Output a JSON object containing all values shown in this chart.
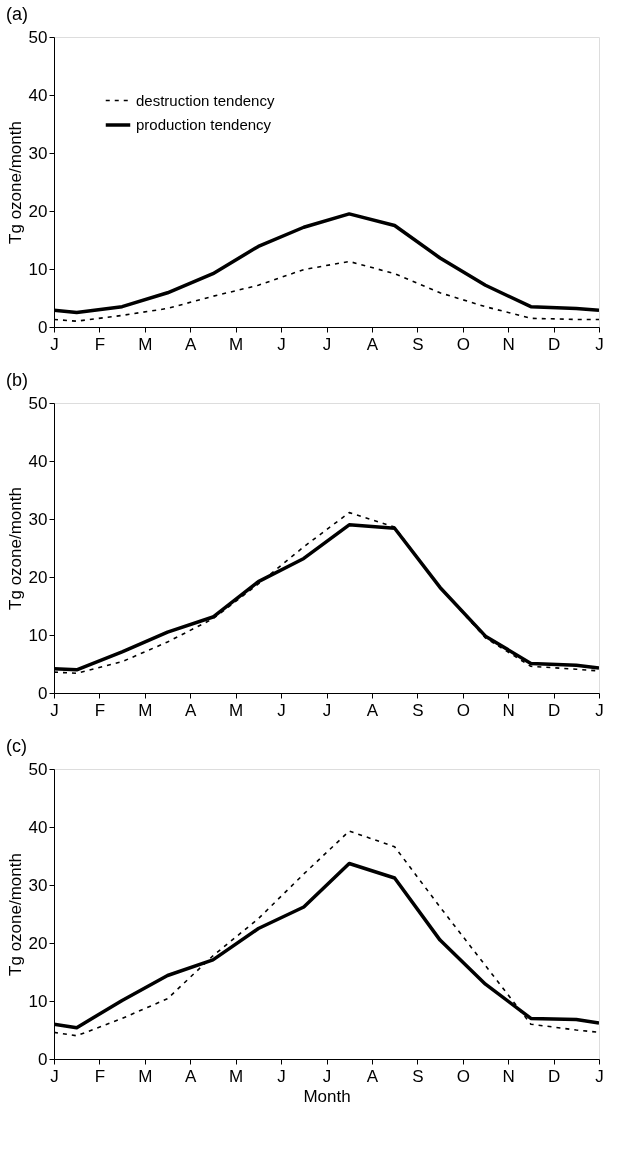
{
  "chart_data": [
    {
      "type": "line",
      "title": "(a)",
      "ylabel": "Tg ozone/month",
      "ylim": [
        0,
        50
      ],
      "yticks": [
        0,
        10,
        20,
        30,
        40,
        50
      ],
      "categories": [
        "J",
        null,
        "F",
        null,
        "M",
        null,
        "A",
        null,
        "M",
        null,
        "J",
        null,
        "J",
        null,
        "A",
        null,
        "S",
        null,
        "O",
        null,
        "N",
        null,
        "D",
        null,
        "J"
      ],
      "series": [
        {
          "name": "destruction tendency",
          "color": "#000000",
          "line_style": "dashed",
          "values": [
            1.3,
            1.0,
            null,
            2.0,
            null,
            3.2,
            null,
            5.3,
            null,
            7.2,
            null,
            9.9,
            null,
            11.3,
            null,
            9.2,
            null,
            5.9,
            null,
            3.5,
            null,
            1.5,
            null,
            1.3,
            1.3
          ]
        },
        {
          "name": "production tendency",
          "color": "#000000",
          "line_style": "solid",
          "values": [
            2.9,
            2.5,
            null,
            3.5,
            null,
            5.9,
            null,
            9.2,
            null,
            13.9,
            null,
            17.2,
            null,
            19.5,
            null,
            17.5,
            null,
            11.9,
            null,
            7.2,
            null,
            3.5,
            null,
            3.2,
            2.9
          ]
        }
      ],
      "legend": "top left",
      "grid": false
    },
    {
      "type": "line",
      "title": "(b)",
      "ylabel": "Tg ozone/month",
      "ylim": [
        0,
        50
      ],
      "yticks": [
        0,
        10,
        20,
        30,
        40,
        50
      ],
      "categories": [
        "J",
        null,
        "F",
        null,
        "M",
        null,
        "A",
        null,
        "M",
        null,
        "J",
        null,
        "J",
        null,
        "A",
        null,
        "S",
        null,
        "O",
        null,
        "N",
        null,
        "D",
        null,
        "J"
      ],
      "series": [
        {
          "name": "destruction tendency",
          "color": "#000000",
          "line_style": "dashed",
          "values": [
            3.6,
            3.4,
            null,
            5.4,
            null,
            8.8,
            null,
            12.8,
            null,
            18.8,
            null,
            25.2,
            null,
            31.1,
            null,
            28.6,
            null,
            18.2,
            null,
            9.5,
            null,
            4.6,
            null,
            4.1,
            3.8
          ]
        },
        {
          "name": "production tendency",
          "color": "#000000",
          "line_style": "solid",
          "values": [
            4.2,
            4.0,
            null,
            7.1,
            null,
            10.5,
            null,
            13.1,
            null,
            19.2,
            null,
            23.2,
            null,
            29.0,
            null,
            28.4,
            null,
            18.2,
            null,
            9.8,
            null,
            5.1,
            null,
            4.8,
            4.3
          ]
        }
      ],
      "legend": "top left",
      "grid": false
    },
    {
      "type": "line",
      "title": "(c)",
      "ylabel": "Tg ozone/month",
      "xlabel": "Month",
      "ylim": [
        0,
        50
      ],
      "yticks": [
        0,
        10,
        20,
        30,
        40,
        50
      ],
      "categories": [
        "J",
        null,
        "F",
        null,
        "M",
        null,
        "A",
        null,
        "M",
        null,
        "J",
        null,
        "J",
        null,
        "A",
        null,
        "S",
        null,
        "O",
        null,
        "N",
        null,
        "D",
        null,
        "J"
      ],
      "series": [
        {
          "name": "destruction tendency",
          "color": "#000000",
          "line_style": "dashed",
          "values": [
            4.6,
            4.0,
            null,
            7.0,
            null,
            10.4,
            null,
            17.8,
            null,
            24.2,
            null,
            31.9,
            null,
            39.3,
            null,
            36.6,
            null,
            26.2,
            null,
            16.1,
            null,
            6.0,
            null,
            5.0,
            4.6
          ]
        },
        {
          "name": "production tendency",
          "color": "#000000",
          "line_style": "solid",
          "values": [
            6.0,
            5.4,
            null,
            10.1,
            null,
            14.4,
            null,
            17.1,
            null,
            22.5,
            null,
            26.2,
            null,
            33.7,
            null,
            31.2,
            null,
            20.5,
            null,
            12.9,
            null,
            7.0,
            null,
            6.8,
            6.2
          ]
        }
      ],
      "legend": "top left",
      "grid": false
    }
  ]
}
